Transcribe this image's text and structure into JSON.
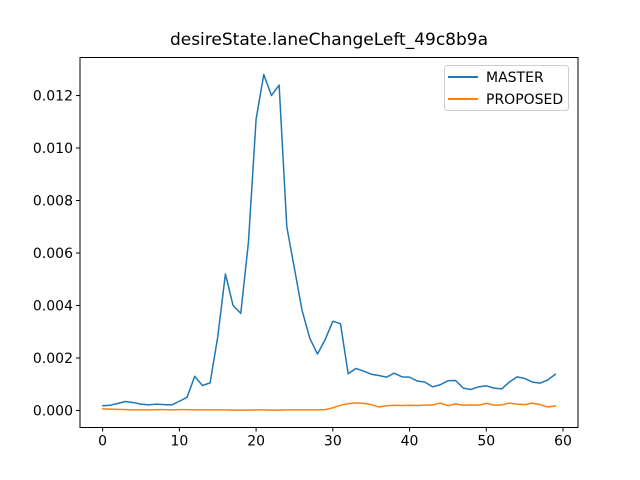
{
  "figure": {
    "title": "desireState.laneChangeLeft_49c8b9a",
    "background_color": "#ffffff",
    "frame_color": "#000000"
  },
  "legend": {
    "position": "upper right",
    "border_color": "#cccccc",
    "items": [
      {
        "label": "MASTER",
        "color": "#1f77b4"
      },
      {
        "label": "PROPOSED",
        "color": "#ff7f0e"
      }
    ]
  },
  "chart_data": {
    "type": "line",
    "title": "desireState.laneChangeLeft_49c8b9a",
    "xlabel": "",
    "ylabel": "",
    "grid": false,
    "legend_position": "upper right",
    "xlim": [
      -2.95,
      61.95
    ],
    "ylim": [
      -0.00065,
      0.01345
    ],
    "xticks": [
      0,
      10,
      20,
      30,
      40,
      50,
      60
    ],
    "xtick_labels": [
      "0",
      "10",
      "20",
      "30",
      "40",
      "50",
      "60"
    ],
    "yticks": [
      0.0,
      0.002,
      0.004,
      0.006,
      0.008,
      0.01,
      0.012
    ],
    "ytick_labels": [
      "0.000",
      "0.002",
      "0.004",
      "0.006",
      "0.008",
      "0.010",
      "0.012"
    ],
    "x": [
      0,
      1,
      2,
      3,
      4,
      5,
      6,
      7,
      8,
      9,
      10,
      11,
      12,
      13,
      14,
      15,
      16,
      17,
      18,
      19,
      20,
      21,
      22,
      23,
      24,
      25,
      26,
      27,
      28,
      29,
      30,
      31,
      32,
      33,
      34,
      35,
      36,
      37,
      38,
      39,
      40,
      41,
      42,
      43,
      44,
      45,
      46,
      47,
      48,
      49,
      50,
      51,
      52,
      53,
      54,
      55,
      56,
      57,
      58,
      59
    ],
    "series": [
      {
        "name": "MASTER",
        "color": "#1f77b4",
        "line_width": 1.5,
        "values": [
          0.00018,
          0.0002,
          0.00027,
          0.00034,
          0.0003,
          0.00024,
          0.00021,
          0.00024,
          0.00022,
          0.00021,
          0.00035,
          0.0005,
          0.0013,
          0.00095,
          0.00105,
          0.0028,
          0.0052,
          0.004,
          0.0037,
          0.0064,
          0.0111,
          0.0128,
          0.012,
          0.0124,
          0.007,
          0.0054,
          0.0038,
          0.00275,
          0.00215,
          0.0027,
          0.0034,
          0.0033,
          0.0014,
          0.0016,
          0.0015,
          0.00138,
          0.00133,
          0.00127,
          0.00142,
          0.00128,
          0.00127,
          0.00112,
          0.00108,
          0.0009,
          0.00098,
          0.00113,
          0.00114,
          0.00085,
          0.0008,
          0.0009,
          0.00094,
          0.00085,
          0.00082,
          0.00108,
          0.00128,
          0.00122,
          0.00108,
          0.00104,
          0.00116,
          0.00138
        ]
      },
      {
        "name": "PROPOSED",
        "color": "#ff7f0e",
        "line_width": 1.5,
        "values": [
          6e-05,
          5e-05,
          4e-05,
          3e-05,
          2e-05,
          2e-05,
          2e-05,
          3e-05,
          3e-05,
          2e-05,
          3e-05,
          3e-05,
          2e-05,
          2e-05,
          2e-05,
          2e-05,
          2e-05,
          1e-05,
          1e-05,
          1e-05,
          2e-05,
          2e-05,
          1e-05,
          1e-05,
          2e-05,
          2e-05,
          2e-05,
          2e-05,
          2e-05,
          3e-05,
          0.0001,
          0.0002,
          0.00026,
          0.00029,
          0.00027,
          0.00022,
          0.00013,
          0.00018,
          0.0002,
          0.00019,
          0.0002,
          0.00019,
          0.0002,
          0.00021,
          0.00028,
          0.00018,
          0.00025,
          0.0002,
          0.00021,
          0.0002,
          0.00027,
          0.0002,
          0.00021,
          0.00028,
          0.00024,
          0.00022,
          0.00028,
          0.00022,
          0.00013,
          0.00017
        ]
      }
    ]
  }
}
